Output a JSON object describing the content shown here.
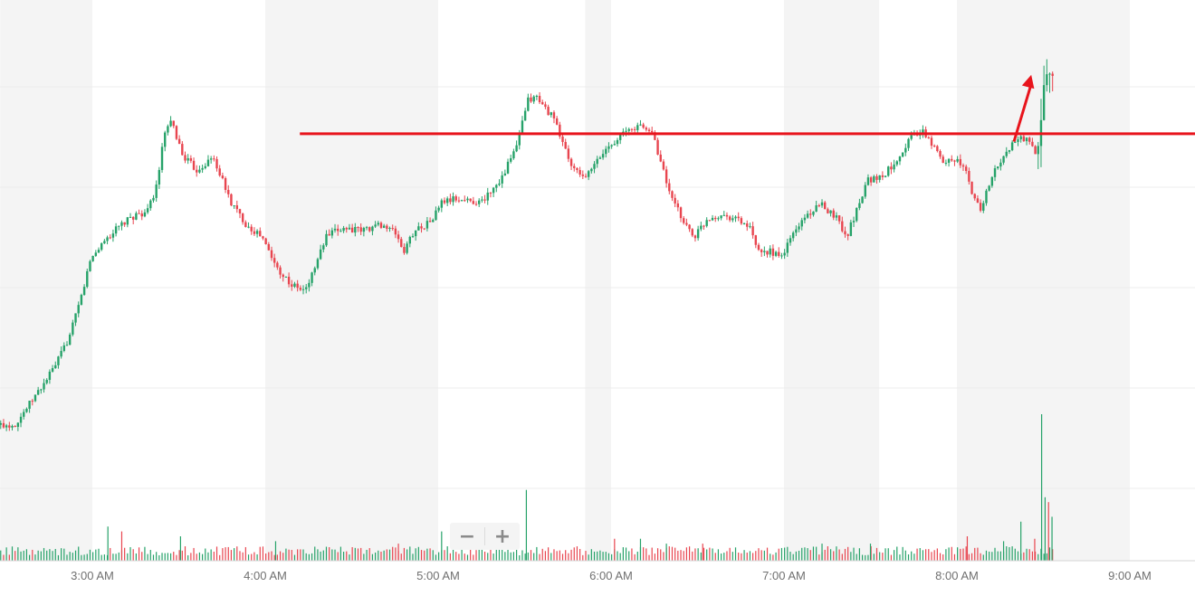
{
  "chart_data": {
    "type": "candlestick",
    "x_tick_labels": [
      "3:00 AM",
      "4:00 AM",
      "5:00 AM",
      "6:00 AM",
      "7:00 AM",
      "8:00 AM",
      "9:00 AM"
    ],
    "x_ticks_hours": [
      3,
      4,
      5,
      6,
      7,
      8,
      9
    ],
    "xlim_hours": [
      2.4667,
      9.5
    ],
    "grid": true,
    "colors": {
      "up": "#26a269",
      "down": "#e8454f",
      "annotation": "#e8141c",
      "shading": "#f4f4f4",
      "gridline": "#ececec"
    },
    "price_path": [
      [
        2.47,
        0.2
      ],
      [
        2.55,
        0.2
      ],
      [
        2.63,
        0.26
      ],
      [
        2.72,
        0.33
      ],
      [
        2.79,
        0.39
      ],
      [
        2.87,
        0.48
      ],
      [
        2.93,
        0.59
      ],
      [
        2.99,
        0.72
      ],
      [
        3.07,
        0.78
      ],
      [
        3.15,
        0.82
      ],
      [
        3.25,
        0.86
      ],
      [
        3.32,
        0.87
      ],
      [
        3.37,
        0.95
      ],
      [
        3.42,
        1.12
      ],
      [
        3.46,
        1.15
      ],
      [
        3.52,
        1.05
      ],
      [
        3.6,
        1.0
      ],
      [
        3.7,
        1.04
      ],
      [
        3.8,
        0.9
      ],
      [
        3.89,
        0.83
      ],
      [
        3.98,
        0.79
      ],
      [
        4.06,
        0.7
      ],
      [
        4.15,
        0.64
      ],
      [
        4.23,
        0.62
      ],
      [
        4.29,
        0.7
      ],
      [
        4.35,
        0.79
      ],
      [
        4.45,
        0.82
      ],
      [
        4.55,
        0.81
      ],
      [
        4.67,
        0.83
      ],
      [
        4.76,
        0.8
      ],
      [
        4.8,
        0.74
      ],
      [
        4.86,
        0.81
      ],
      [
        4.96,
        0.84
      ],
      [
        5.02,
        0.9
      ],
      [
        5.1,
        0.91
      ],
      [
        5.25,
        0.9
      ],
      [
        5.37,
        0.98
      ],
      [
        5.45,
        1.07
      ],
      [
        5.52,
        1.22
      ],
      [
        5.57,
        1.23
      ],
      [
        5.61,
        1.2
      ],
      [
        5.66,
        1.17
      ],
      [
        5.72,
        1.09
      ],
      [
        5.78,
        1.0
      ],
      [
        5.86,
        0.98
      ],
      [
        5.92,
        1.03
      ],
      [
        5.99,
        1.08
      ],
      [
        6.08,
        1.12
      ],
      [
        6.16,
        1.14
      ],
      [
        6.24,
        1.12
      ],
      [
        6.29,
        1.02
      ],
      [
        6.35,
        0.91
      ],
      [
        6.42,
        0.84
      ],
      [
        6.48,
        0.79
      ],
      [
        6.56,
        0.85
      ],
      [
        6.64,
        0.86
      ],
      [
        6.72,
        0.85
      ],
      [
        6.8,
        0.82
      ],
      [
        6.86,
        0.73
      ],
      [
        6.92,
        0.75
      ],
      [
        6.98,
        0.72
      ],
      [
        7.05,
        0.8
      ],
      [
        7.13,
        0.86
      ],
      [
        7.22,
        0.89
      ],
      [
        7.31,
        0.85
      ],
      [
        7.36,
        0.79
      ],
      [
        7.41,
        0.86
      ],
      [
        7.48,
        0.97
      ],
      [
        7.57,
        0.98
      ],
      [
        7.66,
        1.04
      ],
      [
        7.74,
        1.11
      ],
      [
        7.8,
        1.12
      ],
      [
        7.86,
        1.08
      ],
      [
        7.91,
        1.03
      ],
      [
        7.98,
        1.04
      ],
      [
        8.05,
        1.0
      ],
      [
        8.09,
        0.92
      ],
      [
        8.14,
        0.88
      ],
      [
        8.2,
        0.98
      ],
      [
        8.27,
        1.04
      ],
      [
        8.33,
        1.09
      ],
      [
        8.37,
        1.1
      ],
      [
        8.42,
        1.09
      ],
      [
        8.46,
        1.03
      ],
      [
        8.48,
        1.13
      ],
      [
        8.5,
        1.26
      ],
      [
        8.52,
        1.31
      ],
      [
        8.54,
        1.29
      ],
      [
        8.56,
        1.34
      ]
    ],
    "price_path_note_units": "x in hours after midnight; y normalized price",
    "ylim_price": [
      0.0,
      1.45
    ],
    "volume_spikes": [
      [
        3.09,
        0.14
      ],
      [
        3.17,
        0.12
      ],
      [
        3.51,
        0.1
      ],
      [
        4.06,
        0.08
      ],
      [
        4.77,
        0.07
      ],
      [
        5.02,
        0.12
      ],
      [
        5.51,
        0.29
      ],
      [
        6.02,
        0.09
      ],
      [
        6.17,
        0.09
      ],
      [
        6.32,
        0.07
      ],
      [
        6.53,
        0.07
      ],
      [
        7.22,
        0.07
      ],
      [
        7.5,
        0.07
      ],
      [
        8.06,
        0.1
      ],
      [
        8.27,
        0.08
      ],
      [
        8.37,
        0.16
      ],
      [
        8.45,
        0.09
      ],
      [
        8.49,
        0.6
      ],
      [
        8.51,
        0.26
      ],
      [
        8.53,
        0.24
      ],
      [
        8.55,
        0.18
      ]
    ],
    "ylim_volume": [
      0,
      1.0
    ],
    "resistance_line": {
      "x_start": 4.2,
      "x_end": 9.41,
      "y": 1.115
    },
    "breakout_arrow": {
      "x_start": 8.33,
      "y_start": 1.09,
      "x_end": 8.43,
      "y_end": 1.3
    }
  },
  "zoom": {
    "out_label": "−",
    "in_label": "+"
  }
}
